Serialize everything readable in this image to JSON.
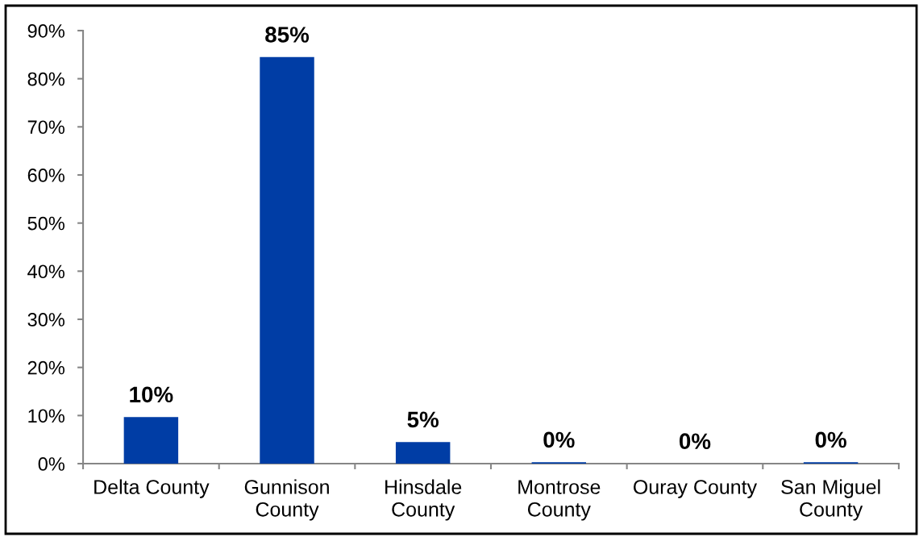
{
  "chart_data": {
    "type": "bar",
    "categories": [
      "Delta County",
      "Gunnison County",
      "Hinsdale County",
      "Montrose County",
      "Ouray County",
      "San Miguel County"
    ],
    "values": [
      9.7,
      84.5,
      4.5,
      0.3,
      0,
      0.3
    ],
    "value_labels": [
      "10%",
      "85%",
      "5%",
      "0%",
      "0%",
      "0%"
    ],
    "color": "#003da5",
    "ylim": [
      0,
      90
    ],
    "yticks": [
      {
        "value": 0,
        "label": "0%"
      },
      {
        "value": 10,
        "label": "10%"
      },
      {
        "value": 20,
        "label": "20%"
      },
      {
        "value": 30,
        "label": "30%"
      },
      {
        "value": 40,
        "label": "40%"
      },
      {
        "value": 50,
        "label": "50%"
      },
      {
        "value": 60,
        "label": "60%"
      },
      {
        "value": 70,
        "label": "70%"
      },
      {
        "value": 80,
        "label": "80%"
      },
      {
        "value": 90,
        "label": "90%"
      }
    ],
    "grid": false
  }
}
